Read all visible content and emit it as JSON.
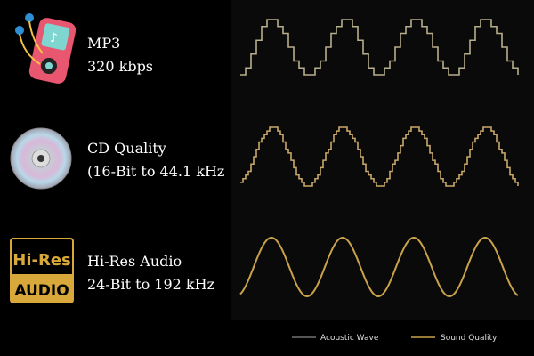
{
  "rows": [
    {
      "title": "MP3",
      "subtitle": "320 kbps"
    },
    {
      "title": "CD Quality",
      "subtitle": "(16-Bit to 44.1 kHz"
    },
    {
      "title": "Hi-Res Audio",
      "subtitle": "24-Bit to 192 kHz"
    }
  ],
  "badge": {
    "top": "Hi-Res",
    "bottom": "AUDIO"
  },
  "legend": [
    "Acoustic Wave",
    "Sound Quality"
  ]
}
